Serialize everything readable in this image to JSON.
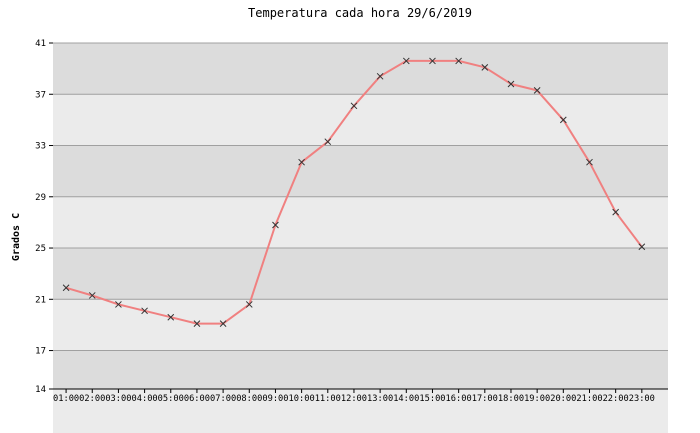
{
  "chart_data": {
    "type": "line",
    "title": "Temperatura cada hora 29/6/2019",
    "xlabel": "",
    "ylabel": "Grados C",
    "ylim": [
      14,
      41
    ],
    "yticks": [
      14,
      17,
      21,
      25,
      29,
      33,
      37,
      41
    ],
    "grid": true,
    "categories": [
      "01:00",
      "02:00",
      "03:00",
      "04:00",
      "05:00",
      "06:00",
      "07:00",
      "08:00",
      "09:00",
      "10:00",
      "11:00",
      "12:00",
      "13:00",
      "14:00",
      "15:00",
      "16:00",
      "17:00",
      "18:00",
      "19:00",
      "20:00",
      "21:00",
      "22:00",
      "23:00"
    ],
    "series": [
      {
        "values": [
          21.9,
          21.3,
          20.6,
          20.1,
          19.6,
          19.1,
          19.1,
          20.6,
          26.8,
          31.7,
          33.3,
          36.1,
          38.4,
          39.6,
          39.6,
          39.6,
          39.1,
          37.8,
          37.3,
          35.0,
          31.7,
          27.8,
          25.1
        ],
        "color": "#f08080"
      }
    ],
    "colors": {
      "band_dark": "#dcdcdc",
      "band_light": "#ebebeb",
      "grid_line": "#a0a0a0",
      "line": "#f08080",
      "marker": "#333333"
    }
  }
}
